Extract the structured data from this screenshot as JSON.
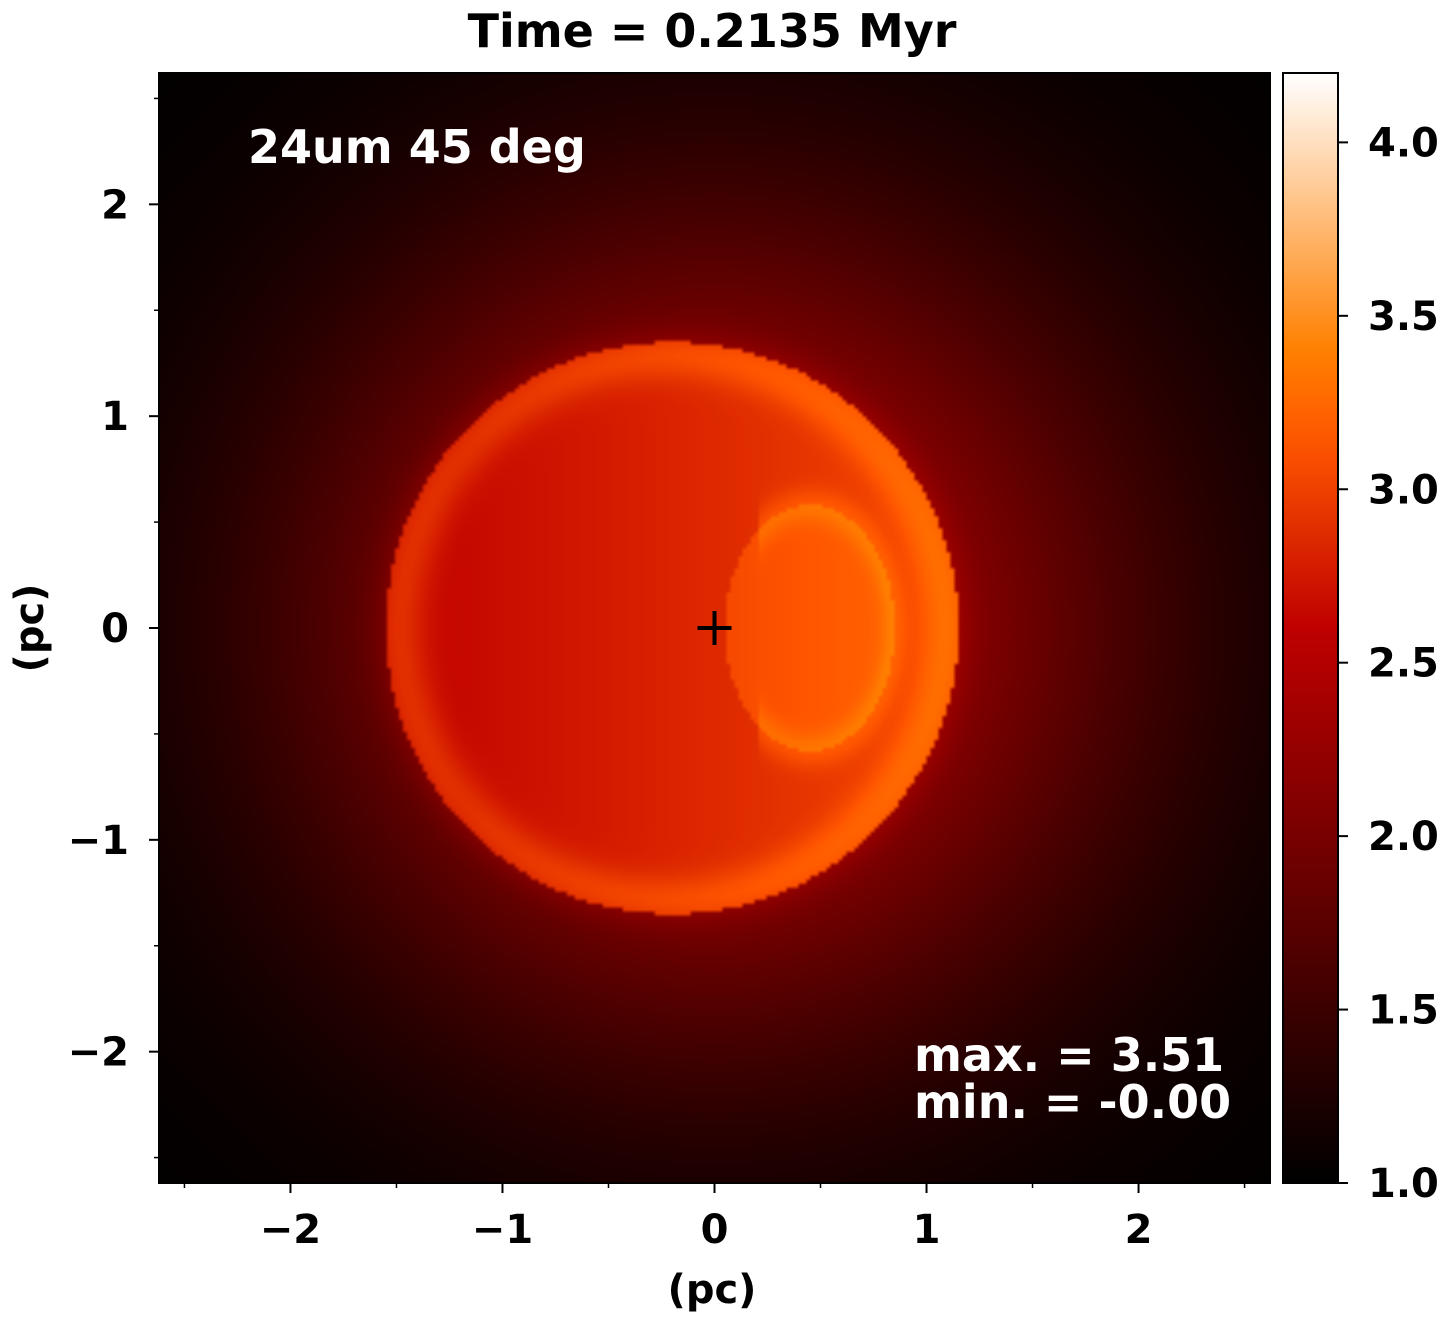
{
  "chart_data": {
    "type": "heatmap",
    "title": "Time = 0.2135 Myr",
    "xlabel": "(pc)",
    "ylabel": "(pc)",
    "xlim": [
      -2.62,
      2.62
    ],
    "ylim": [
      -2.62,
      2.62
    ],
    "x_ticks": [
      -2,
      -1,
      0,
      1,
      2
    ],
    "y_ticks": [
      -2,
      -1,
      0,
      1,
      2
    ],
    "x_tick_labels": [
      "−2",
      "−1",
      "0",
      "1",
      "2"
    ],
    "y_tick_labels": [
      "−2",
      "−1",
      "0",
      "1",
      "2"
    ],
    "annotation_label": "24um 45 deg",
    "stats": [
      "max. = 3.51",
      "min. = -0.00"
    ],
    "center_marker": {
      "x": 0,
      "y": 0,
      "symbol": "+"
    },
    "colormap": "gist_heat",
    "colorbar": {
      "range": [
        1.0,
        4.2
      ],
      "ticks": [
        1.0,
        1.5,
        2.0,
        2.5,
        3.0,
        3.5,
        4.0
      ],
      "tick_labels": [
        "1.0",
        "1.5",
        "2.0",
        "2.5",
        "3.0",
        "3.5",
        "4.0"
      ]
    },
    "features": {
      "outer_shell": {
        "center": [
          -0.2,
          0
        ],
        "radius": 1.35,
        "peak_value": 3.2
      },
      "inner_arc": {
        "center": [
          0.45,
          0
        ],
        "radius_x": 0.4,
        "radius_y": 0.58,
        "peak_value": 3.5
      },
      "halo": {
        "center": [
          0,
          0
        ],
        "scale": 2.0,
        "peak_value": 2.5
      }
    },
    "grid": false
  }
}
